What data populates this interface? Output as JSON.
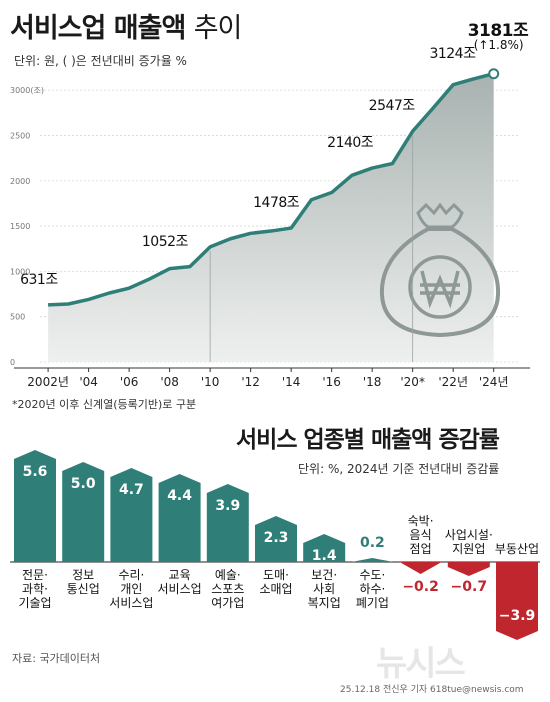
{
  "title": {
    "bold": "서비스업 매출액",
    "light": "추이"
  },
  "unit_note": "단위: 원, ( )은 전년대비 증가율 %",
  "footnote": "*2020년 이후 신계열(등록기반)로 구분",
  "bar_title": "서비스 업종별 매출액 증감률",
  "bar_unit_note": "단위: %, 2024년 기준 전년대비 증감률",
  "source": "자료: 국가데이터처",
  "credit": "25.12.18 전신우 기자 618tue@newsis.com",
  "watermark": "뉴시스",
  "colors": {
    "line": "#2f7f78",
    "area_top": "#a8b2b0",
    "area_bottom": "#eef0ef",
    "pos_bar": "#2f7f78",
    "neg_bar": "#c0262d",
    "neg_text": "#c0262d"
  },
  "icon": "money-bag-won-icon",
  "chart_data": [
    {
      "type": "area",
      "y_unit_label": "3000(조)",
      "ylim": [
        0,
        3200
      ],
      "yticks": [
        0,
        500,
        1000,
        1500,
        2000,
        2500,
        3000
      ],
      "xlim": [
        2001.6,
        2025.2
      ],
      "xticks": [
        {
          "x": 2002,
          "label": "2002년"
        },
        {
          "x": 2004,
          "label": "'04"
        },
        {
          "x": 2006,
          "label": "'06"
        },
        {
          "x": 2008,
          "label": "'08"
        },
        {
          "x": 2010,
          "label": "'10"
        },
        {
          "x": 2012,
          "label": "'12"
        },
        {
          "x": 2014,
          "label": "'14"
        },
        {
          "x": 2016,
          "label": "'16"
        },
        {
          "x": 2018,
          "label": "'18"
        },
        {
          "x": 2020,
          "label": "'20*"
        },
        {
          "x": 2022,
          "label": "'22년"
        },
        {
          "x": 2024,
          "label": "'24년"
        }
      ],
      "x": [
        2002,
        2003,
        2004,
        2005,
        2006,
        2007,
        2008,
        2009,
        2010,
        2011,
        2012,
        2013,
        2014,
        2015,
        2016,
        2017,
        2018,
        2019,
        2020,
        2021,
        2022,
        2023,
        2024
      ],
      "y": [
        631,
        640,
        690,
        760,
        815,
        915,
        1030,
        1052,
        1270,
        1360,
        1420,
        1445,
        1478,
        1790,
        1870,
        2060,
        2140,
        2190,
        2547,
        2800,
        3060,
        3124,
        3181
      ],
      "dividers": [
        2010,
        2020
      ],
      "annotations": [
        {
          "x": 2002,
          "y": 631,
          "label": "631조"
        },
        {
          "x": 2009,
          "y": 1052,
          "label": "1052조"
        },
        {
          "x": 2014,
          "y": 1478,
          "label": "1478조"
        },
        {
          "x": 2018,
          "y": 2140,
          "label": "2140조"
        },
        {
          "x": 2020,
          "y": 2547,
          "label": "2547조"
        },
        {
          "x": 2023,
          "y": 3124,
          "label": "3124조"
        },
        {
          "x": 2024,
          "y": 3181,
          "label": "3181조",
          "change": "(↑1.8%)"
        }
      ]
    },
    {
      "type": "bar",
      "categories": [
        "전문·\n과학·\n기술업",
        "정보\n통신업",
        "수리·\n개인\n서비스업",
        "교육\n서비스업",
        "예술·\n스포츠\n여가업",
        "도매·\n소매업",
        "보건·\n사회\n복지업",
        "수도·\n하수·\n폐기업",
        "숙박·\n음식\n점업",
        "사업시설·\n지원업",
        "부동산업"
      ],
      "values": [
        5.6,
        5.0,
        4.7,
        4.4,
        3.9,
        2.3,
        1.4,
        0.2,
        -0.2,
        -0.7,
        -3.9
      ],
      "value_labels": [
        "5.6",
        "5.0",
        "4.7",
        "4.4",
        "3.9",
        "2.3",
        "1.4",
        "0.2",
        "−0.2",
        "−0.7",
        "−3.9"
      ]
    }
  ]
}
